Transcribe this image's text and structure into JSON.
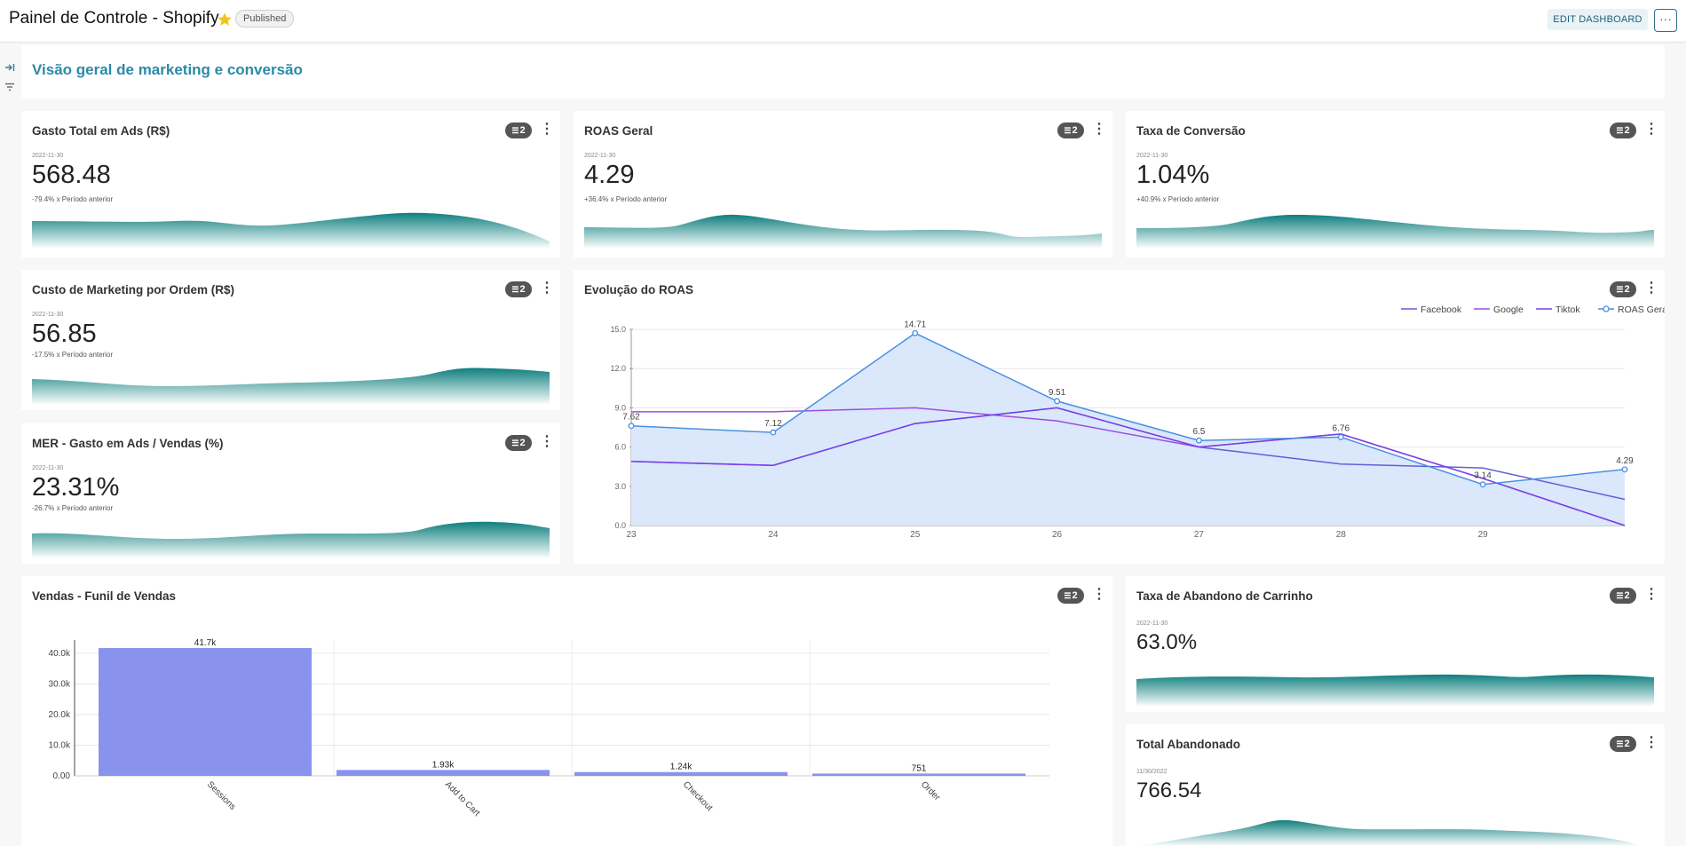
{
  "header": {
    "title": "Painel de Controle - Shopify",
    "status": "Published",
    "edit_label": "EDIT DASHBOARD",
    "more_label": "···"
  },
  "section": {
    "title": "Visão geral de marketing e conversão"
  },
  "cards": {
    "gasto": {
      "title": "Gasto Total em Ads (R$)",
      "filters": "2",
      "date": "2022-11-30",
      "value": "568.48",
      "change": "-79.4% x Período anterior"
    },
    "roas": {
      "title": "ROAS Geral",
      "filters": "2",
      "date": "2022-11-30",
      "value": "4.29",
      "change": "+36.4% x Período anterior"
    },
    "conv": {
      "title": "Taxa de Conversão",
      "filters": "2",
      "date": "2022-11-30",
      "value": "1.04%",
      "change": "+40.9% x Período anterior"
    },
    "cmo": {
      "title": "Custo de Marketing por Ordem (R$)",
      "filters": "2",
      "date": "2022-11-30",
      "value": "56.85",
      "change": "-17.5% x Período anterior"
    },
    "mer": {
      "title": "MER - Gasto em Ads / Vendas (%)",
      "filters": "2",
      "date": "2022-11-30",
      "value": "23.31%",
      "change": "-26.7% x Período anterior"
    },
    "evo": {
      "title": "Evolução do ROAS",
      "filters": "2"
    },
    "funnel": {
      "title": "Vendas - Funil de Vendas",
      "filters": "2"
    },
    "aband": {
      "title": "Taxa de Abandono de Carrinho",
      "filters": "2",
      "date": "2022-11-30",
      "value": "63.0%"
    },
    "total": {
      "title": "Total Abandonado",
      "filters": "2",
      "date": "11/30/2022",
      "value": "766.54"
    }
  },
  "colors": {
    "accent": "#2b8aa6",
    "teal": "#0f7f7f",
    "facebook": "#6060d8",
    "google": "#9a4fe0",
    "tiktok": "#7a3fe8",
    "roas": "#4a90e2",
    "bar": "#8993ee"
  },
  "icons": {
    "star": "star-icon",
    "collapse": "collapse-sidebar-icon",
    "filter": "filter-icon",
    "kebab": "kebab-menu-icon"
  },
  "chart_data": [
    {
      "type": "line",
      "title": "Evolução do ROAS",
      "x": [
        "23",
        "24",
        "25",
        "26",
        "27",
        "28",
        "29",
        "30"
      ],
      "xtick_labels": [
        "23",
        "24",
        "25",
        "26",
        "27",
        "28",
        "29"
      ],
      "ylim": [
        0,
        15
      ],
      "yticks": [
        "0.0",
        "3.0",
        "6.0",
        "9.0",
        "12.0",
        "15.0"
      ],
      "grid": true,
      "legend": "top-right",
      "series": [
        {
          "name": "Facebook",
          "values": [
            4.9,
            4.6,
            7.8,
            9.0,
            6.0,
            4.7,
            4.4,
            2.0
          ]
        },
        {
          "name": "Google",
          "values": [
            8.7,
            8.7,
            9.0,
            8.0,
            6.0,
            7.0,
            3.6,
            0.0
          ]
        },
        {
          "name": "Tiktok",
          "values": [
            4.9,
            4.6,
            7.8,
            9.0,
            6.0,
            7.0,
            3.6,
            0.0
          ]
        },
        {
          "name": "ROAS Geral",
          "values": [
            7.62,
            7.12,
            14.71,
            9.51,
            6.5,
            6.76,
            3.14,
            4.29
          ],
          "labels": [
            "7.62",
            "7.12",
            "14.71",
            "9.51",
            "6.5",
            "6.76",
            "3.14",
            "4.29"
          ]
        }
      ]
    },
    {
      "type": "bar",
      "title": "Vendas - Funil de Vendas",
      "categories": [
        "Sessions",
        "Add to Cart",
        "Checkout",
        "Order"
      ],
      "values": [
        41700,
        1930,
        1240,
        751
      ],
      "labels": [
        "41.7k",
        "1.93k",
        "1.24k",
        "751"
      ],
      "ylim": [
        0,
        42000
      ],
      "yticks": [
        "0.00",
        "10.0k",
        "20.0k",
        "30.0k",
        "40.0k"
      ],
      "grid": true
    }
  ]
}
